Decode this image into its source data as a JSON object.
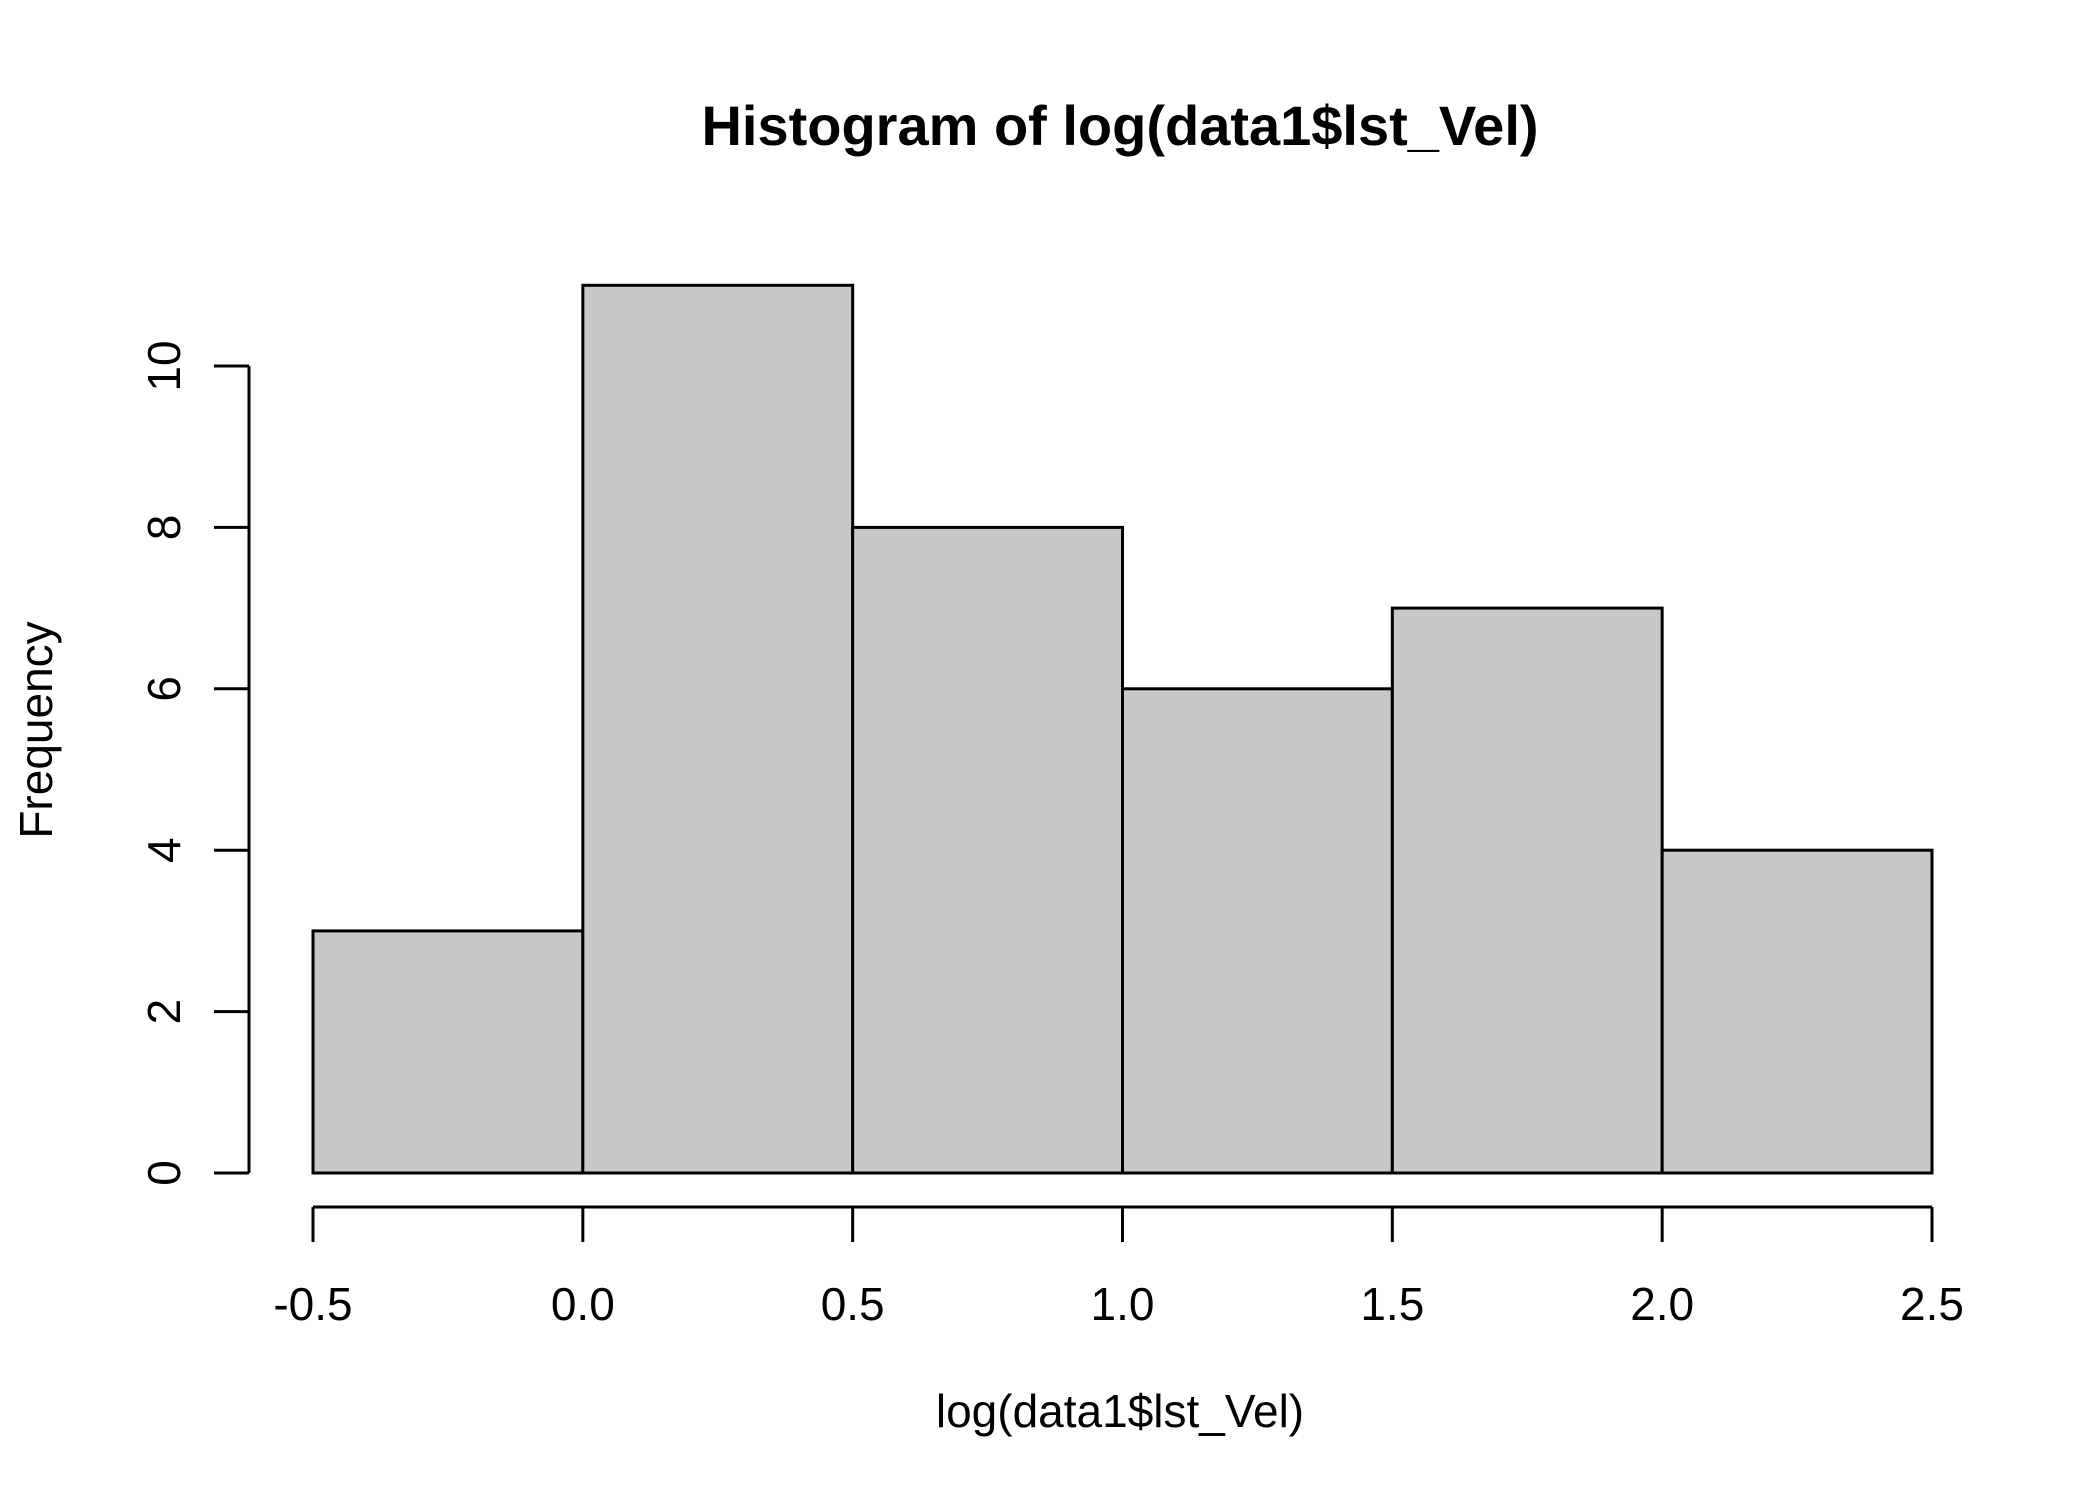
{
  "chart_data": {
    "type": "bar",
    "title": "Histogram of log(data1$lst_Vel)",
    "xlabel": "log(data1$lst_Vel)",
    "ylabel": "Frequency",
    "bins": [
      {
        "start": -0.5,
        "end": 0.0,
        "count": 3
      },
      {
        "start": 0.0,
        "end": 0.5,
        "count": 11
      },
      {
        "start": 0.5,
        "end": 1.0,
        "count": 8
      },
      {
        "start": 1.0,
        "end": 1.5,
        "count": 6
      },
      {
        "start": 1.5,
        "end": 2.0,
        "count": 7
      },
      {
        "start": 2.0,
        "end": 2.5,
        "count": 4
      }
    ],
    "xlim": [
      -0.5,
      2.5
    ],
    "ylim": [
      0,
      11
    ],
    "x_ticks": [
      "-0.5",
      "0.0",
      "0.5",
      "1.0",
      "1.5",
      "2.0",
      "2.5"
    ],
    "y_ticks": [
      "0",
      "2",
      "4",
      "6",
      "8",
      "10"
    ],
    "bar_fill": "#c8c8c8",
    "bar_stroke": "#000000",
    "grid": false,
    "legend": "none"
  }
}
